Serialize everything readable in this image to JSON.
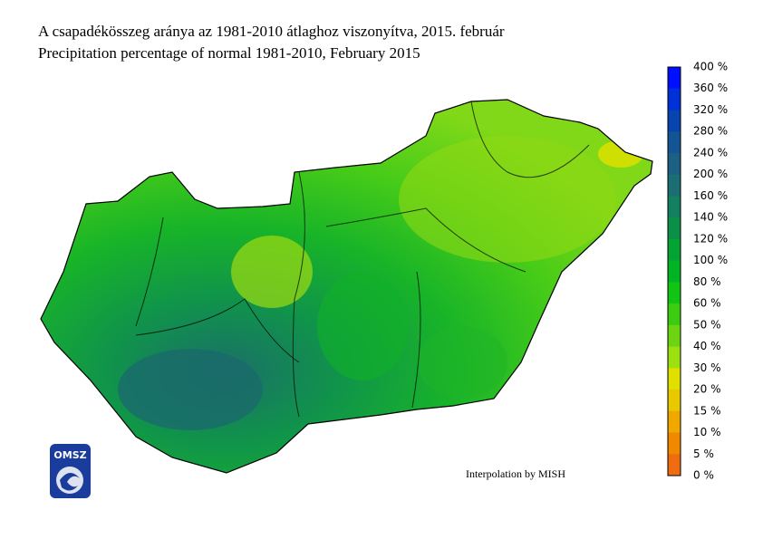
{
  "header": {
    "title_hu": "A csapadékösszeg aránya az 1981-2010 átlaghoz viszonyítva, 2015. február",
    "title_en": "Precipitation percentage of normal 1981-2010, February 2015"
  },
  "legend": {
    "labels": [
      "400 %",
      "360 %",
      "320 %",
      "280 %",
      "240 %",
      "200 %",
      "160 %",
      "140 %",
      "120 %",
      "100 %",
      "80 %",
      "60 %",
      "50 %",
      "40 %",
      "30 %",
      "20 %",
      "15 %",
      "10 %",
      "5 %",
      "0 %"
    ],
    "colors": [
      "#0010ff",
      "#0030d8",
      "#0844b0",
      "#145494",
      "#1c6084",
      "#1a6e74",
      "#138060",
      "#0c9048",
      "#04a434",
      "#00b424",
      "#12c414",
      "#3ccc10",
      "#6cd410",
      "#9ce010",
      "#e0e000",
      "#e8c800",
      "#f0a800",
      "#f08800",
      "#f06c10"
    ]
  },
  "credit": "Interpolation by MISH",
  "logo": {
    "text": "OMSZ"
  }
}
